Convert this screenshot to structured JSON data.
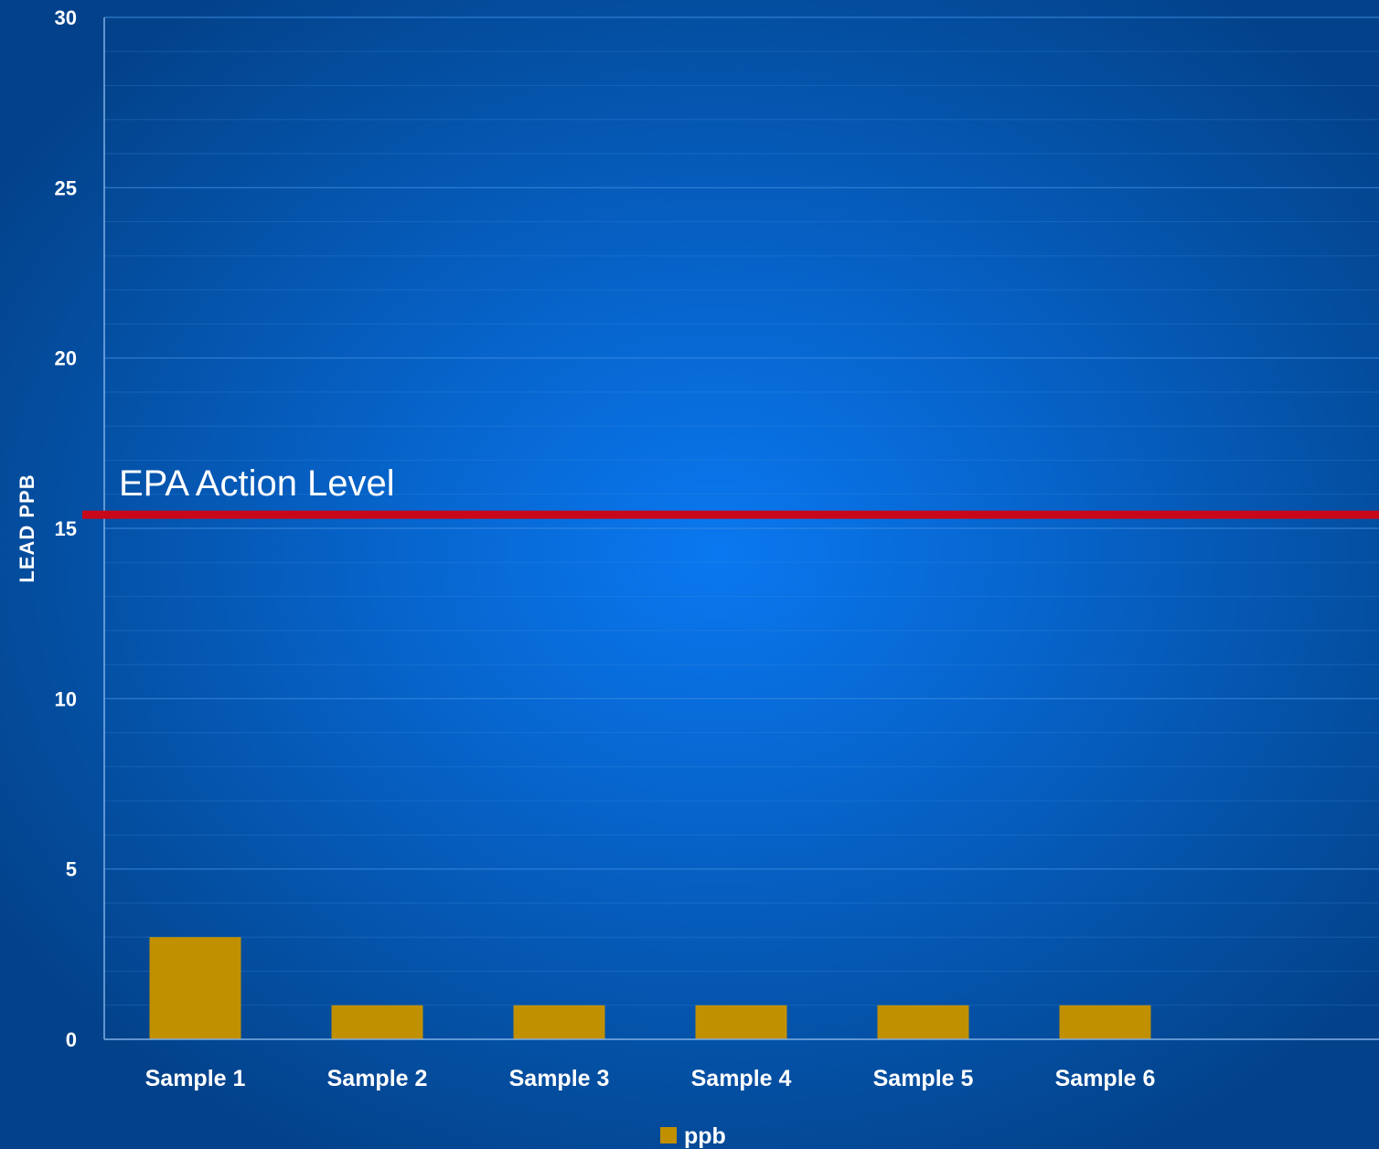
{
  "chart_data": {
    "type": "bar",
    "categories": [
      "Sample 1",
      "Sample 2",
      "Sample 3",
      "Sample 4",
      "Sample 5",
      "Sample 6"
    ],
    "series": [
      {
        "name": "ppb",
        "values": [
          3,
          1,
          1,
          1,
          1,
          1
        ]
      }
    ],
    "ylabel": "LEAD PPB",
    "xlabel": "",
    "ylim": [
      0,
      30
    ],
    "yticks": [
      0,
      5,
      10,
      15,
      20,
      25,
      30
    ],
    "minor_gridlines": true,
    "legend_position": "bottom",
    "reference_line": {
      "label": "EPA Action Level",
      "value": 15.4
    },
    "colors": {
      "bar": "#c09000",
      "reference_line": "#c8081a",
      "text": "#ffffff",
      "axis": "#7fb0e6",
      "gridline": "#3f8ee0"
    }
  }
}
